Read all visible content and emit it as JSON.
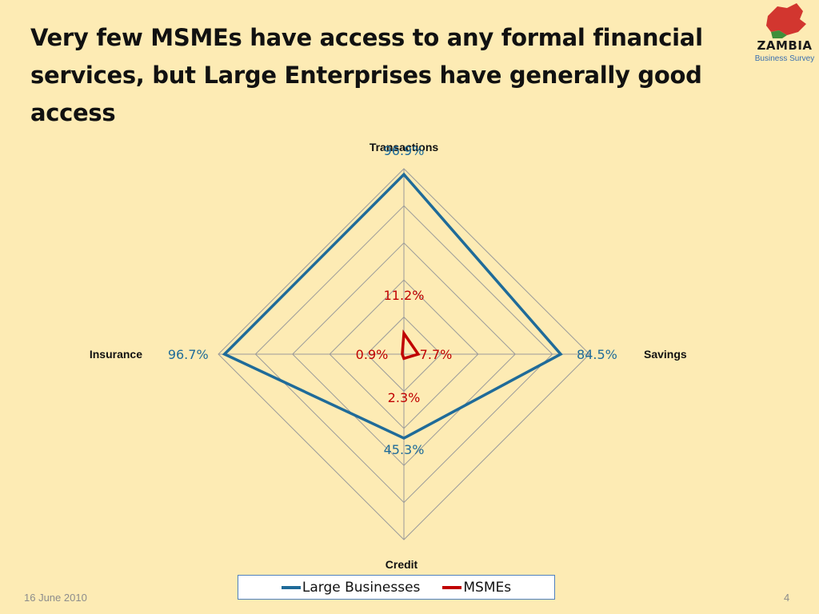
{
  "slide": {
    "title_line1": "Very few MSMEs have access to any formal financial",
    "title_line2": "services, but Large Enterprises have generally good",
    "title_line3": "access",
    "date": "16 June 2010",
    "page_number": "4"
  },
  "logo": {
    "name": "ZAMBIA",
    "subtitle": "Business Survey"
  },
  "chart_data": {
    "type": "radar",
    "axes": [
      "Transactions",
      "Savings",
      "Credit",
      "Insurance"
    ],
    "rmax": 100,
    "grid_rings": 5,
    "series": [
      {
        "name": "Large Businesses",
        "color": "#1F6B99",
        "values": [
          96.9,
          84.5,
          45.3,
          96.7
        ],
        "labels": [
          "96.9%",
          "84.5%",
          "45.3%",
          "96.7%"
        ]
      },
      {
        "name": "MSMEs",
        "color": "#C00000",
        "values": [
          11.2,
          7.7,
          2.3,
          0.9
        ],
        "labels": [
          "11.2%",
          "7.7%",
          "2.3%",
          "0.9%"
        ]
      }
    ],
    "legend": "bottom"
  }
}
